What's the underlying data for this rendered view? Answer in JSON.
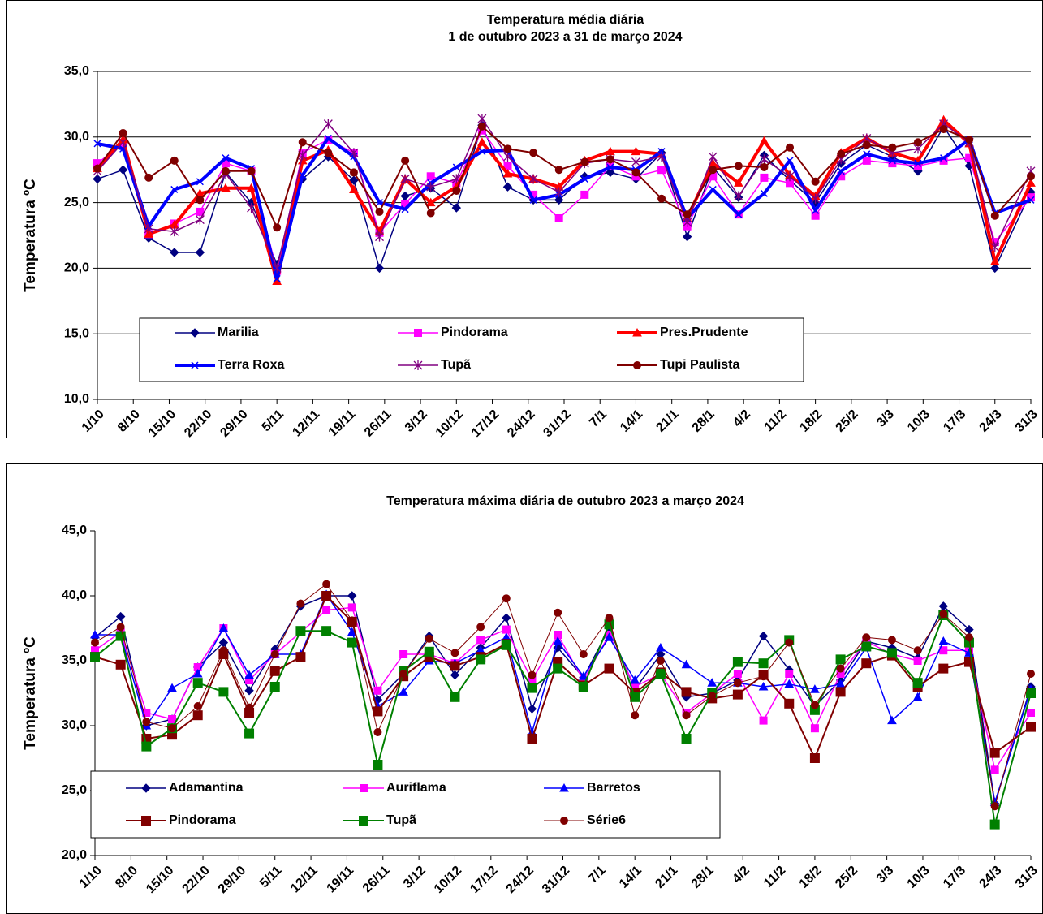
{
  "chart_data": [
    {
      "type": "line",
      "title": "Temperatura média diária",
      "subtitle": "1 de outubro 2023 a 31 de março 2024",
      "y_label": "Temperatura ºC",
      "x": [
        "1/10",
        "6/10",
        "11/10",
        "16/10",
        "21/10",
        "26/10",
        "31/10",
        "5/11",
        "10/11",
        "15/11",
        "20/11",
        "25/11",
        "30/11",
        "5/12",
        "10/12",
        "15/12",
        "20/12",
        "25/12",
        "30/12",
        "4/1",
        "9/1",
        "14/1",
        "19/1",
        "24/1",
        "29/1",
        "3/2",
        "8/2",
        "13/2",
        "18/2",
        "23/2",
        "28/2",
        "4/3",
        "9/3",
        "14/3",
        "19/3",
        "24/3",
        "31/3"
      ],
      "xlim": [
        "1/10",
        "31/3"
      ],
      "xticks": [
        "1/10",
        "8/10",
        "15/10",
        "22/10",
        "29/10",
        "5/11",
        "12/11",
        "19/11",
        "26/11",
        "3/12",
        "10/12",
        "17/12",
        "24/12",
        "31/12",
        "7/1",
        "14/1",
        "21/1",
        "28/1",
        "4/2",
        "11/2",
        "18/2",
        "25/2",
        "3/3",
        "10/3",
        "17/3",
        "24/3",
        "31/3"
      ],
      "ylim": [
        10,
        35
      ],
      "yticks": [
        {
          "value": 10,
          "label": "10,0"
        },
        {
          "value": 15,
          "label": "15,0"
        },
        {
          "value": 20,
          "label": "20,0"
        },
        {
          "value": 25,
          "label": "25,0"
        },
        {
          "value": 30,
          "label": "30,0"
        },
        {
          "value": 35,
          "label": "35,0"
        }
      ],
      "grid": true,
      "legend": "lower center",
      "series": [
        {
          "name": "Marilia",
          "color": "#000080",
          "marker": "diamond",
          "line_width": 1.5,
          "values": [
            26.8,
            27.5,
            22.3,
            21.2,
            21.2,
            27.3,
            25.0,
            20.3,
            26.8,
            28.5,
            26.7,
            20.0,
            25.5,
            26.1,
            24.6,
            30.9,
            26.2,
            25.2,
            25.2,
            27.0,
            27.3,
            26.8,
            28.8,
            22.4,
            27.7,
            25.4,
            28.6,
            26.7,
            25.0,
            28.0,
            29.4,
            28.5,
            27.4,
            30.8,
            27.8,
            20.0,
            25.8
          ]
        },
        {
          "name": "Pindorama",
          "color": "#ff00ff",
          "marker": "square",
          "line_width": 1.5,
          "values": [
            28.0,
            29.5,
            22.6,
            23.4,
            24.3,
            28.0,
            27.4,
            19.8,
            28.8,
            29.8,
            28.8,
            22.7,
            24.9,
            27.0,
            26.5,
            30.5,
            27.8,
            25.6,
            23.8,
            25.6,
            27.8,
            27.0,
            27.5,
            23.2,
            27.0,
            24.1,
            26.9,
            26.5,
            24.0,
            27.0,
            28.2,
            28.0,
            27.8,
            28.2,
            28.4,
            22.0,
            25.4
          ]
        },
        {
          "name": "Pres.Prudente",
          "color": "#ff0000",
          "marker": "triangle",
          "line_width": 4,
          "values": [
            27.6,
            29.8,
            22.6,
            23.3,
            25.7,
            26.1,
            26.1,
            19.0,
            28.2,
            29.0,
            26.0,
            22.8,
            26.8,
            25.0,
            26.2,
            29.6,
            27.2,
            26.8,
            26.2,
            28.2,
            28.9,
            28.9,
            28.7,
            23.8,
            28.0,
            26.5,
            29.7,
            27.1,
            25.5,
            28.8,
            29.9,
            28.8,
            28.2,
            31.3,
            29.5,
            20.5,
            26.5
          ]
        },
        {
          "name": "Terra Roxa",
          "color": "#0000ff",
          "marker": "x",
          "line_width": 4,
          "values": [
            29.5,
            29.1,
            23.2,
            26.0,
            26.6,
            28.4,
            27.6,
            19.2,
            27.1,
            29.9,
            28.5,
            25.0,
            24.5,
            26.5,
            27.7,
            28.9,
            29.0,
            25.2,
            25.6,
            26.8,
            27.7,
            27.5,
            28.9,
            23.8,
            26.0,
            24.1,
            25.7,
            28.2,
            24.4,
            27.4,
            28.7,
            28.2,
            28.0,
            28.4,
            29.8,
            24.2,
            25.2
          ]
        },
        {
          "name": "Tupã",
          "color": "#800080",
          "marker": "star",
          "line_width": 1.5,
          "values": [
            27.4,
            29.6,
            23.0,
            22.8,
            23.7,
            27.2,
            24.6,
            20.0,
            28.6,
            31.0,
            28.8,
            22.4,
            26.8,
            26.2,
            26.8,
            31.4,
            28.5,
            26.8,
            25.8,
            28.0,
            28.3,
            28.1,
            28.5,
            23.5,
            28.5,
            25.5,
            28.3,
            27.0,
            25.3,
            28.3,
            29.9,
            28.8,
            29.1,
            31.0,
            29.6,
            21.6,
            27.4
          ]
        },
        {
          "name": "Tupi Paulista",
          "color": "#800000",
          "marker": "circle",
          "line_width": 2,
          "values": [
            27.6,
            30.3,
            26.9,
            28.2,
            25.2,
            27.4,
            27.4,
            23.1,
            29.6,
            28.8,
            27.3,
            24.3,
            28.2,
            24.2,
            25.9,
            30.8,
            29.1,
            28.8,
            27.5,
            28.1,
            28.3,
            27.3,
            25.3,
            24.1,
            27.5,
            27.8,
            27.7,
            29.2,
            26.6,
            28.7,
            29.4,
            29.2,
            29.6,
            30.6,
            29.8,
            24.0,
            27.0
          ]
        }
      ]
    },
    {
      "type": "line",
      "title": "Temperatura máxima diária de outubro 2023 a março 2024",
      "y_label": "Temperatura ºC",
      "x": [
        "1/10",
        "6/10",
        "11/10",
        "16/10",
        "21/10",
        "26/10",
        "31/10",
        "5/11",
        "10/11",
        "15/11",
        "20/11",
        "25/11",
        "30/11",
        "5/12",
        "10/12",
        "15/12",
        "20/12",
        "25/12",
        "30/12",
        "4/1",
        "9/1",
        "14/1",
        "19/1",
        "24/1",
        "29/1",
        "3/2",
        "8/2",
        "13/2",
        "18/2",
        "23/2",
        "28/2",
        "4/3",
        "9/3",
        "14/3",
        "19/3",
        "24/3",
        "31/3"
      ],
      "xlim": [
        "1/10",
        "31/3"
      ],
      "xticks": [
        "1/10",
        "8/10",
        "15/10",
        "22/10",
        "29/10",
        "5/11",
        "12/11",
        "19/11",
        "26/11",
        "3/12",
        "10/12",
        "17/12",
        "24/12",
        "31/12",
        "7/1",
        "14/1",
        "21/1",
        "28/1",
        "4/2",
        "11/2",
        "18/2",
        "25/2",
        "3/3",
        "10/3",
        "17/3",
        "24/3",
        "31/3"
      ],
      "ylim": [
        20,
        45
      ],
      "yticks": [
        {
          "value": 20,
          "label": "20,0"
        },
        {
          "value": 25,
          "label": "25,0"
        },
        {
          "value": 30,
          "label": "30,0"
        },
        {
          "value": 35,
          "label": "35,0"
        },
        {
          "value": 40,
          "label": "40,0"
        },
        {
          "value": 45,
          "label": "45,0"
        }
      ],
      "grid": false,
      "legend": "lower left",
      "series": [
        {
          "name": "Adamantina",
          "color": "#000080",
          "marker": "diamond",
          "line_width": 1.5,
          "values": [
            36.8,
            38.4,
            30.0,
            30.5,
            34.5,
            36.4,
            32.7,
            35.9,
            39.2,
            40.0,
            40.0,
            32.0,
            34.0,
            36.9,
            33.9,
            36.0,
            38.3,
            31.3,
            36.0,
            33.7,
            37.5,
            32.8,
            35.5,
            32.2,
            32.5,
            33.5,
            36.9,
            34.3,
            31.5,
            33.5,
            36.5,
            36.0,
            35.2,
            39.2,
            37.4,
            24.0,
            33.0
          ]
        },
        {
          "name": "Auriflama",
          "color": "#ff00ff",
          "marker": "square",
          "line_width": 1.5,
          "values": [
            35.8,
            37.2,
            31.0,
            30.5,
            34.5,
            37.5,
            33.5,
            35.5,
            37.2,
            38.9,
            39.1,
            32.7,
            35.5,
            35.5,
            34.8,
            36.6,
            37.4,
            33.5,
            37.0,
            33.5,
            37.0,
            33.0,
            34.0,
            31.0,
            32.5,
            34.0,
            30.4,
            34.0,
            29.8,
            34.0,
            36.5,
            35.5,
            35.0,
            35.8,
            35.8,
            26.6,
            31.0
          ]
        },
        {
          "name": "Barretos",
          "color": "#0000ff",
          "marker": "triangle",
          "line_width": 1.5,
          "values": [
            37.0,
            37.0,
            30.0,
            32.9,
            34.0,
            37.5,
            33.9,
            35.5,
            35.5,
            40.1,
            37.2,
            31.5,
            32.6,
            35.0,
            34.8,
            35.8,
            36.8,
            29.5,
            36.5,
            33.8,
            36.8,
            33.5,
            36.0,
            34.7,
            33.3,
            33.3,
            33.0,
            33.2,
            32.8,
            33.2,
            36.0,
            30.4,
            32.2,
            36.5,
            35.6,
            24.1,
            32.8
          ]
        },
        {
          "name": "Pindorama",
          "color": "#800000",
          "marker": "square",
          "line_width": 2,
          "values": [
            35.3,
            34.7,
            29.0,
            29.3,
            30.8,
            35.5,
            31.0,
            34.2,
            35.3,
            40.0,
            38.0,
            31.1,
            33.8,
            35.3,
            34.6,
            35.3,
            36.3,
            29.0,
            34.9,
            33.1,
            34.4,
            32.5,
            34.1,
            32.6,
            32.1,
            32.4,
            33.9,
            31.7,
            27.5,
            32.6,
            34.8,
            35.4,
            33.0,
            34.4,
            34.9,
            27.9,
            29.9
          ]
        },
        {
          "name": "Tupã",
          "color": "#008000",
          "marker": "square",
          "line_width": 2,
          "values": [
            35.3,
            36.9,
            28.4,
            29.8,
            33.3,
            32.6,
            29.4,
            33.0,
            37.3,
            37.3,
            36.4,
            27.0,
            34.2,
            35.7,
            32.2,
            35.1,
            36.2,
            32.9,
            34.4,
            33.0,
            37.8,
            32.2,
            34.0,
            29.0,
            32.5,
            34.9,
            34.8,
            36.6,
            31.2,
            35.1,
            36.1,
            35.6,
            33.3,
            38.5,
            36.4,
            22.4,
            32.5
          ]
        },
        {
          "name": "Série6",
          "color": "#800000",
          "marker": "circle",
          "line_width": 1,
          "values": [
            36.4,
            37.6,
            30.3,
            29.8,
            31.5,
            35.8,
            31.4,
            35.5,
            39.4,
            40.9,
            38.1,
            29.5,
            34.0,
            36.7,
            35.6,
            37.6,
            39.8,
            33.9,
            38.7,
            35.5,
            38.3,
            30.8,
            35.0,
            30.8,
            32.3,
            33.3,
            33.8,
            36.4,
            31.6,
            34.4,
            36.8,
            36.6,
            35.8,
            38.6,
            36.8,
            23.8,
            34.0
          ]
        }
      ]
    }
  ]
}
